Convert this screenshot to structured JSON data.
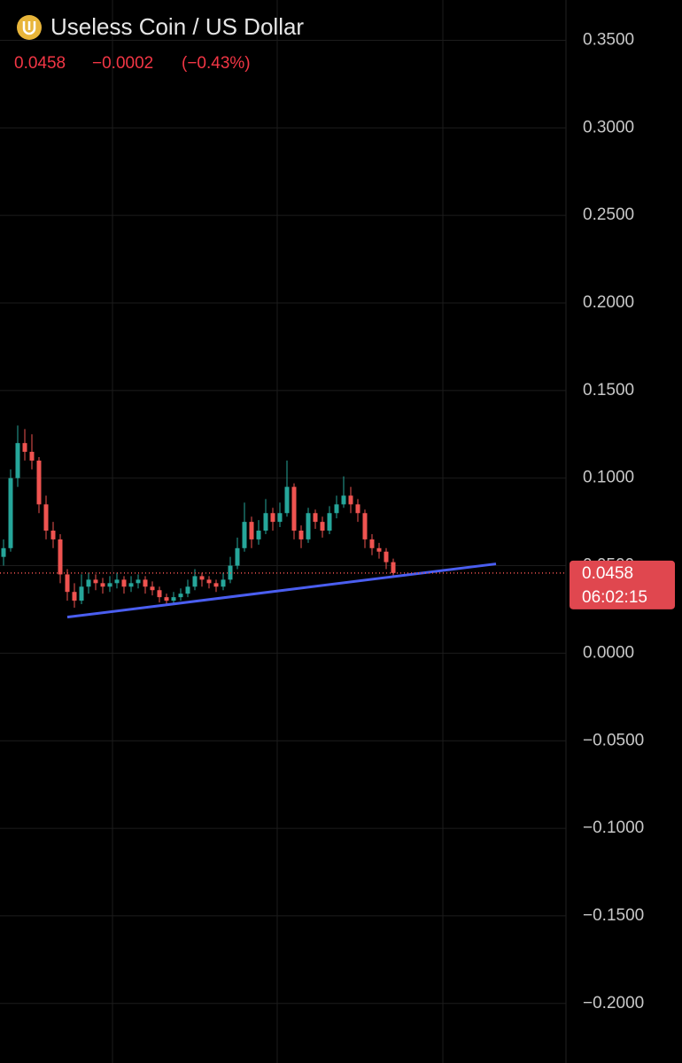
{
  "chart_data": {
    "type": "candlestick",
    "title": "Useless Coin / US Dollar",
    "last_price": "0.0458",
    "change": "−0.0002",
    "change_percent": "(−0.43%)",
    "price_tag": {
      "value": 0.0458,
      "label": "0.0458",
      "countdown": "06:02:15"
    },
    "ylim": [
      -0.234,
      0.373
    ],
    "yticks": [
      {
        "value": 0.35,
        "label": "0.3500"
      },
      {
        "value": 0.3,
        "label": "0.3000"
      },
      {
        "value": 0.25,
        "label": "0.2500"
      },
      {
        "value": 0.2,
        "label": "0.2000"
      },
      {
        "value": 0.15,
        "label": "0.1500"
      },
      {
        "value": 0.1,
        "label": "0.1000"
      },
      {
        "value": 0.05,
        "label": "0.0500"
      },
      {
        "value": 0,
        "label": "0.0000"
      },
      {
        "value": -0.05,
        "label": "−0.0500"
      },
      {
        "value": -0.1,
        "label": "−0.1000"
      },
      {
        "value": -0.15,
        "label": "−0.1500"
      },
      {
        "value": -0.2,
        "label": "−0.2000"
      }
    ],
    "grid": true,
    "up_color": "#26a69a",
    "down_color": "#ef5350",
    "open": [
      0.055,
      0.06,
      0.1,
      0.12,
      0.115,
      0.11,
      0.085,
      0.07,
      0.065,
      0.045,
      0.035,
      0.03,
      0.038,
      0.042,
      0.04,
      0.038,
      0.04,
      0.042,
      0.038,
      0.04,
      0.042,
      0.038,
      0.036,
      0.032,
      0.03,
      0.032,
      0.034,
      0.038,
      0.044,
      0.042,
      0.04,
      0.038,
      0.042,
      0.05,
      0.06,
      0.075,
      0.065,
      0.07,
      0.08,
      0.075,
      0.08,
      0.095,
      0.07,
      0.065,
      0.08,
      0.075,
      0.07,
      0.08,
      0.085,
      0.09,
      0.085,
      0.08,
      0.065,
      0.06,
      0.058,
      0.052
    ],
    "high": [
      0.065,
      0.105,
      0.13,
      0.128,
      0.125,
      0.112,
      0.09,
      0.075,
      0.068,
      0.048,
      0.04,
      0.045,
      0.046,
      0.045,
      0.043,
      0.044,
      0.046,
      0.044,
      0.044,
      0.045,
      0.044,
      0.041,
      0.038,
      0.034,
      0.035,
      0.037,
      0.042,
      0.048,
      0.046,
      0.044,
      0.042,
      0.046,
      0.055,
      0.066,
      0.086,
      0.078,
      0.076,
      0.088,
      0.083,
      0.086,
      0.11,
      0.097,
      0.073,
      0.083,
      0.082,
      0.078,
      0.084,
      0.09,
      0.101,
      0.095,
      0.088,
      0.082,
      0.068,
      0.063,
      0.06,
      0.054
    ],
    "low": [
      0.05,
      0.058,
      0.095,
      0.11,
      0.105,
      0.08,
      0.065,
      0.06,
      0.04,
      0.03,
      0.026,
      0.028,
      0.034,
      0.036,
      0.034,
      0.035,
      0.037,
      0.034,
      0.035,
      0.037,
      0.034,
      0.033,
      0.029,
      0.027,
      0.028,
      0.03,
      0.032,
      0.036,
      0.038,
      0.037,
      0.035,
      0.036,
      0.04,
      0.048,
      0.058,
      0.06,
      0.062,
      0.068,
      0.07,
      0.072,
      0.078,
      0.065,
      0.06,
      0.063,
      0.071,
      0.066,
      0.068,
      0.077,
      0.083,
      0.08,
      0.075,
      0.06,
      0.056,
      0.054,
      0.048,
      0.044
    ],
    "close": [
      0.06,
      0.1,
      0.12,
      0.115,
      0.11,
      0.085,
      0.07,
      0.065,
      0.045,
      0.035,
      0.03,
      0.038,
      0.042,
      0.04,
      0.038,
      0.04,
      0.042,
      0.038,
      0.04,
      0.042,
      0.038,
      0.036,
      0.032,
      0.03,
      0.032,
      0.034,
      0.038,
      0.044,
      0.042,
      0.04,
      0.038,
      0.042,
      0.05,
      0.06,
      0.075,
      0.065,
      0.07,
      0.08,
      0.075,
      0.08,
      0.095,
      0.07,
      0.065,
      0.08,
      0.075,
      0.07,
      0.08,
      0.085,
      0.09,
      0.085,
      0.08,
      0.065,
      0.06,
      0.058,
      0.052,
      0.0458
    ],
    "trendline": {
      "color": "#4a5ef0",
      "x": [
        9,
        69.5
      ],
      "y": [
        0.0206,
        0.051
      ]
    }
  }
}
